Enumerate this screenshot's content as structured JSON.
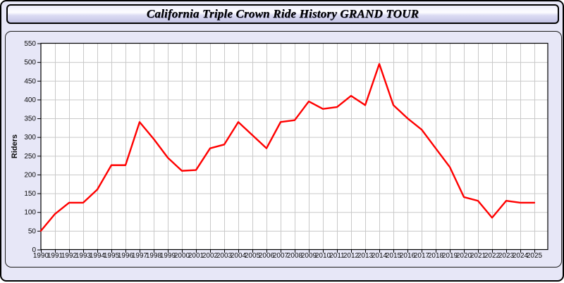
{
  "window": {
    "title": "California Triple Crown Ride History GRAND TOUR"
  },
  "colors": {
    "window_bg": "#e7e7f7",
    "panel_bg": "#e7e7f7",
    "plot_bg": "#ffffff",
    "grid": "#c9c9c9",
    "axis": "#000000",
    "line": "#ff0000"
  },
  "chart_data": {
    "type": "line",
    "title": "California Triple Crown Ride History GRAND TOUR",
    "xlabel": "",
    "ylabel": "Riders",
    "ylim": [
      0,
      550
    ],
    "ytick_step": 50,
    "grid": true,
    "legend": "none",
    "x": [
      1990,
      1991,
      1992,
      1993,
      1994,
      1995,
      1996,
      1997,
      1998,
      1999,
      2000,
      2001,
      2002,
      2003,
      2004,
      2005,
      2006,
      2007,
      2008,
      2009,
      2010,
      2011,
      2012,
      2013,
      2014,
      2015,
      2016,
      2017,
      2018,
      2019,
      2020,
      2021,
      2022,
      2023,
      2024,
      2025
    ],
    "series": [
      {
        "name": "Riders",
        "color": "#ff0000",
        "values": [
          50,
          95,
          125,
          125,
          160,
          225,
          225,
          340,
          295,
          245,
          210,
          212,
          270,
          280,
          340,
          305,
          270,
          340,
          345,
          395,
          375,
          380,
          410,
          385,
          495,
          385,
          350,
          320,
          270,
          220,
          140,
          130,
          85,
          130,
          125,
          125
        ]
      }
    ]
  }
}
